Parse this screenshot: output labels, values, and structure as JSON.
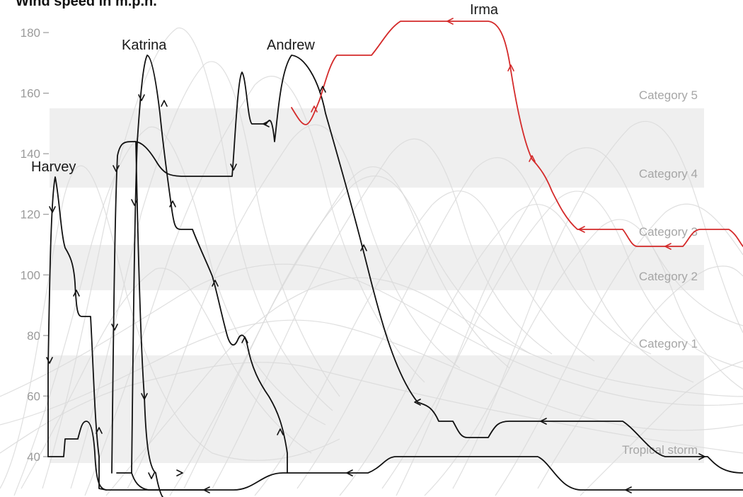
{
  "title": "Wind speed in m.p.h.",
  "chart_data": {
    "type": "line",
    "title": "Wind speed in m.p.h.",
    "ylabel": "Wind speed in m.p.h.",
    "ylim": [
      30,
      185
    ],
    "y_ticks": [
      40,
      60,
      80,
      100,
      120,
      140,
      160,
      180
    ],
    "grid": false,
    "bands": [
      {
        "name": "Category 5",
        "min": 157,
        "max": 160
      },
      {
        "name": "Category 4",
        "min": 130,
        "max": 156
      },
      {
        "name": "Category 3",
        "min": 111,
        "max": 129
      },
      {
        "name": "Category 2",
        "min": 96,
        "max": 110
      },
      {
        "name": "Category 1",
        "min": 74,
        "max": 95
      },
      {
        "name": "Tropical storm",
        "min": 39,
        "max": 73
      }
    ],
    "highlight_color": "#d42a2a",
    "storm_color": "#111111",
    "background_color": "#d9d9d9",
    "series": [
      {
        "name": "Harvey",
        "highlight": false,
        "points": [
          [
            0,
            40
          ],
          [
            1,
            40
          ],
          [
            2,
            70
          ],
          [
            3,
            130
          ],
          [
            4,
            133
          ],
          [
            5,
            125
          ],
          [
            6,
            110
          ],
          [
            7,
            105
          ],
          [
            8,
            100
          ],
          [
            9,
            90
          ],
          [
            10,
            88
          ],
          [
            11,
            88
          ],
          [
            12,
            80
          ],
          [
            13,
            50
          ],
          [
            14,
            46
          ],
          [
            15,
            46
          ],
          [
            16,
            46
          ],
          [
            17,
            50
          ],
          [
            18,
            52
          ],
          [
            19,
            46
          ],
          [
            20,
            35
          ],
          [
            21,
            32
          ]
        ]
      },
      {
        "name": "Katrina",
        "highlight": false,
        "points": [
          [
            0,
            35
          ],
          [
            1,
            38
          ],
          [
            2,
            80
          ],
          [
            3,
            140
          ],
          [
            4,
            142
          ],
          [
            5,
            143
          ],
          [
            6,
            144
          ],
          [
            7,
            140
          ],
          [
            8,
            135
          ],
          [
            9,
            132
          ],
          [
            10,
            132
          ],
          [
            11,
            132
          ],
          [
            12,
            132
          ],
          [
            13,
            160
          ],
          [
            14,
            170
          ],
          [
            15,
            173
          ]
        ]
      },
      {
        "name": "Andrew",
        "highlight": false,
        "points": [
          [
            0,
            150
          ],
          [
            1,
            152
          ],
          [
            2,
            165
          ],
          [
            3,
            172
          ],
          [
            4,
            173
          ],
          [
            5,
            168
          ],
          [
            6,
            150
          ],
          [
            7,
            125
          ],
          [
            8,
            95
          ],
          [
            9,
            68
          ],
          [
            10,
            58
          ],
          [
            11,
            55
          ],
          [
            12,
            50
          ],
          [
            13,
            46
          ],
          [
            14,
            46
          ],
          [
            15,
            50
          ]
        ]
      },
      {
        "name": "Irma",
        "highlight": true,
        "points": [
          [
            0,
            155
          ],
          [
            1,
            150
          ],
          [
            2,
            160
          ],
          [
            3,
            172
          ],
          [
            4,
            173
          ],
          [
            5,
            175
          ],
          [
            6,
            183
          ],
          [
            7,
            184
          ],
          [
            8,
            182
          ],
          [
            9,
            160
          ],
          [
            10,
            135
          ],
          [
            11,
            118
          ],
          [
            12,
            115
          ],
          [
            13,
            112
          ],
          [
            14,
            110
          ],
          [
            15,
            110
          ],
          [
            16,
            115
          ],
          [
            17,
            115
          ]
        ]
      }
    ]
  }
}
